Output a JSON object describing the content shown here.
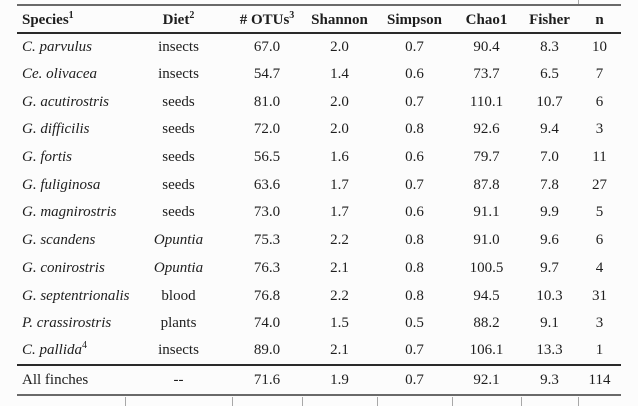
{
  "table": {
    "columns": [
      {
        "key": "species",
        "label": "Species",
        "sup": "1"
      },
      {
        "key": "diet",
        "label": "Diet",
        "sup": "2"
      },
      {
        "key": "otus",
        "label": "# OTUs",
        "sup": "3"
      },
      {
        "key": "shannon",
        "label": "Shannon",
        "sup": ""
      },
      {
        "key": "simpson",
        "label": "Simpson",
        "sup": ""
      },
      {
        "key": "chao1",
        "label": "Chao1",
        "sup": ""
      },
      {
        "key": "fisher",
        "label": "Fisher",
        "sup": ""
      },
      {
        "key": "n",
        "label": "n",
        "sup": ""
      }
    ],
    "rows": [
      {
        "species": "C. parvulus",
        "species_sup": "",
        "species_italic": true,
        "diet": "insects",
        "diet_italic": false,
        "otus": "67.0",
        "shannon": "2.0",
        "simpson": "0.7",
        "chao1": "90.4",
        "fisher": "8.3",
        "n": "10",
        "summary": false
      },
      {
        "species": "Ce. olivacea",
        "species_sup": "",
        "species_italic": true,
        "diet": "insects",
        "diet_italic": false,
        "otus": "54.7",
        "shannon": "1.4",
        "simpson": "0.6",
        "chao1": "73.7",
        "fisher": "6.5",
        "n": "7",
        "summary": false
      },
      {
        "species": "G. acutirostris",
        "species_sup": "",
        "species_italic": true,
        "diet": "seeds",
        "diet_italic": false,
        "otus": "81.0",
        "shannon": "2.0",
        "simpson": "0.7",
        "chao1": "110.1",
        "fisher": "10.7",
        "n": "6",
        "summary": false
      },
      {
        "species": "G. difficilis",
        "species_sup": "",
        "species_italic": true,
        "diet": "seeds",
        "diet_italic": false,
        "otus": "72.0",
        "shannon": "2.0",
        "simpson": "0.8",
        "chao1": "92.6",
        "fisher": "9.4",
        "n": "3",
        "summary": false
      },
      {
        "species": "G. fortis",
        "species_sup": "",
        "species_italic": true,
        "diet": "seeds",
        "diet_italic": false,
        "otus": "56.5",
        "shannon": "1.6",
        "simpson": "0.6",
        "chao1": "79.7",
        "fisher": "7.0",
        "n": "11",
        "summary": false
      },
      {
        "species": "G. fuliginosa",
        "species_sup": "",
        "species_italic": true,
        "diet": "seeds",
        "diet_italic": false,
        "otus": "63.6",
        "shannon": "1.7",
        "simpson": "0.7",
        "chao1": "87.8",
        "fisher": "7.8",
        "n": "27",
        "summary": false
      },
      {
        "species": "G. magnirostris",
        "species_sup": "",
        "species_italic": true,
        "diet": "seeds",
        "diet_italic": false,
        "otus": "73.0",
        "shannon": "1.7",
        "simpson": "0.6",
        "chao1": "91.1",
        "fisher": "9.9",
        "n": "5",
        "summary": false
      },
      {
        "species": "G. scandens",
        "species_sup": "",
        "species_italic": true,
        "diet": "Opuntia",
        "diet_italic": true,
        "otus": "75.3",
        "shannon": "2.2",
        "simpson": "0.8",
        "chao1": "91.0",
        "fisher": "9.6",
        "n": "6",
        "summary": false
      },
      {
        "species": "G. conirostris",
        "species_sup": "",
        "species_italic": true,
        "diet": "Opuntia",
        "diet_italic": true,
        "otus": "76.3",
        "shannon": "2.1",
        "simpson": "0.8",
        "chao1": "100.5",
        "fisher": "9.7",
        "n": "4",
        "summary": false
      },
      {
        "species": "G. septentrionalis",
        "species_sup": "",
        "species_italic": true,
        "diet": "blood",
        "diet_italic": false,
        "otus": "76.8",
        "shannon": "2.2",
        "simpson": "0.8",
        "chao1": "94.5",
        "fisher": "10.3",
        "n": "31",
        "summary": false
      },
      {
        "species": "P. crassirostris",
        "species_sup": "",
        "species_italic": true,
        "diet": "plants",
        "diet_italic": false,
        "otus": "74.0",
        "shannon": "1.5",
        "simpson": "0.5",
        "chao1": "88.2",
        "fisher": "9.1",
        "n": "3",
        "summary": false
      },
      {
        "species": "C. pallida",
        "species_sup": "4",
        "species_italic": true,
        "diet": "insects",
        "diet_italic": false,
        "otus": "89.0",
        "shannon": "2.1",
        "simpson": "0.7",
        "chao1": "106.1",
        "fisher": "13.3",
        "n": "1",
        "summary": false
      },
      {
        "species": "All finches",
        "species_sup": "",
        "species_italic": false,
        "diet": "--",
        "diet_italic": false,
        "otus": "71.6",
        "shannon": "1.9",
        "simpson": "0.7",
        "chao1": "92.1",
        "fisher": "9.3",
        "n": "114",
        "summary": true
      }
    ]
  },
  "colors": {
    "background": "#fcfcfc",
    "text": "#1e1e1e",
    "rule_dark": "#2a2a2a",
    "rule_gray": "#6a6a6a",
    "tick": "#a8a8a8"
  }
}
